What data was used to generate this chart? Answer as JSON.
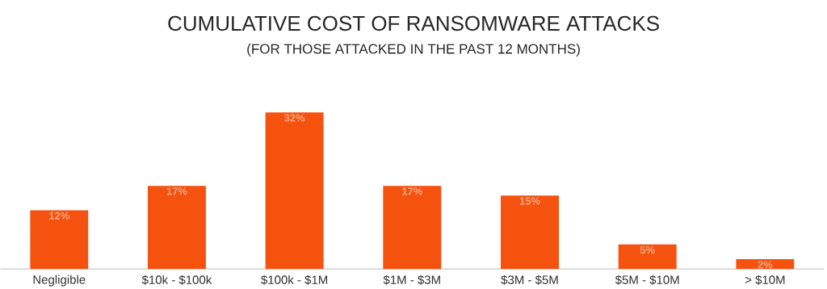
{
  "chart_data": {
    "type": "bar",
    "title": "CUMULATIVE COST OF RANSOMWARE ATTACKS",
    "subtitle": "(FOR THOSE ATTACKED IN THE PAST 12 MONTHS)",
    "categories": [
      "Negligible",
      "$10k - $100k",
      "$100k - $1M",
      "$1M - $3M",
      "$3M - $5M",
      "$5M - $10M",
      "> $10M"
    ],
    "values": [
      12,
      17,
      32,
      17,
      15,
      5,
      2
    ],
    "value_labels": [
      "12%",
      "17%",
      "32%",
      "17%",
      "15%",
      "5%",
      "2%"
    ],
    "color": "#f55210"
  }
}
